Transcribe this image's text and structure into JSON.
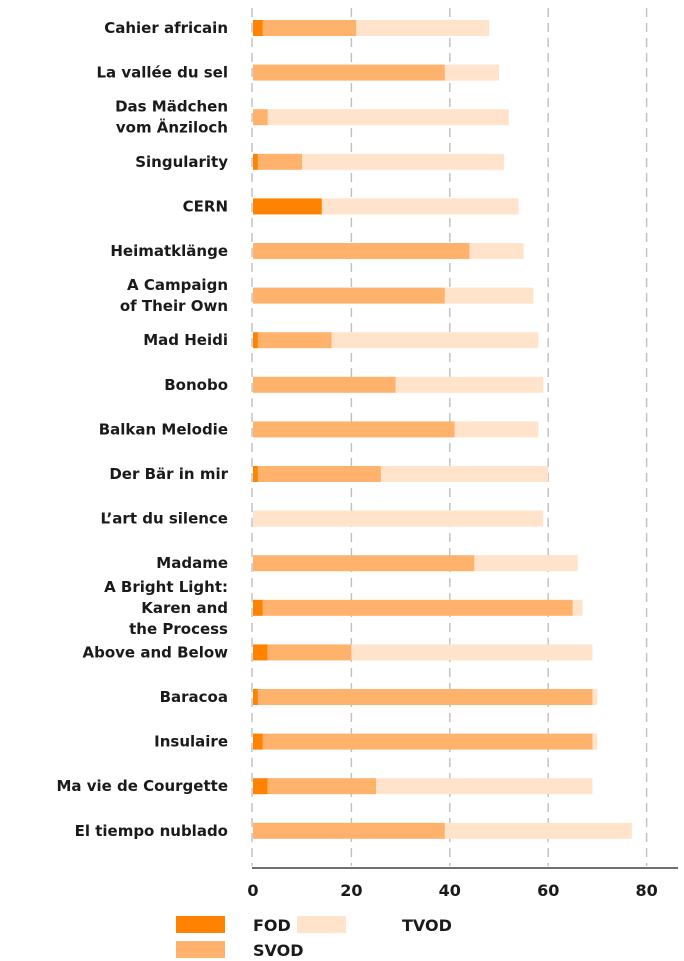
{
  "chart_data": {
    "type": "bar",
    "orientation": "horizontal",
    "stacked": true,
    "categories": [
      [
        "Cahier africain"
      ],
      [
        "La vallée du sel"
      ],
      [
        "Das Mädchen",
        "vom Änziloch"
      ],
      [
        "Singularity"
      ],
      [
        "CERN"
      ],
      [
        "Heimatklänge"
      ],
      [
        "A Campaign",
        "of Their Own"
      ],
      [
        "Mad Heidi"
      ],
      [
        "Bonobo"
      ],
      [
        "Balkan Melodie"
      ],
      [
        "Der Bär in mir"
      ],
      [
        "L’art du silence"
      ],
      [
        "Madame"
      ],
      [
        "A Bright Light:",
        "Karen and",
        "the Process"
      ],
      [
        "Above and Below"
      ],
      [
        "Baracoa"
      ],
      [
        "Insulaire"
      ],
      [
        "Ma vie de Courgette"
      ],
      [
        "El tiempo nublado"
      ]
    ],
    "series": [
      {
        "name": "FOD",
        "color": "#ff8200",
        "values": [
          2,
          0,
          0,
          1,
          14,
          0,
          0,
          1,
          0,
          0,
          1,
          0,
          0,
          2,
          3,
          1,
          2,
          3,
          0
        ]
      },
      {
        "name": "SVOD",
        "color": "#ffb26b",
        "values": [
          19,
          39,
          3,
          9,
          0,
          44,
          39,
          15,
          29,
          41,
          25,
          0,
          45,
          63,
          17,
          68,
          67,
          22,
          39
        ]
      },
      {
        "name": "TVOD",
        "color": "#ffe3cb",
        "values": [
          27,
          11,
          49,
          41,
          40,
          11,
          18,
          42,
          30,
          17,
          34,
          59,
          21,
          2,
          49,
          1,
          1,
          44,
          38
        ]
      }
    ],
    "xlim": [
      0,
      82
    ],
    "xticks": [
      0,
      20,
      40,
      60,
      80
    ],
    "grid": true,
    "legend": "bottom-left",
    "title": "",
    "xlabel": "",
    "ylabel": ""
  }
}
